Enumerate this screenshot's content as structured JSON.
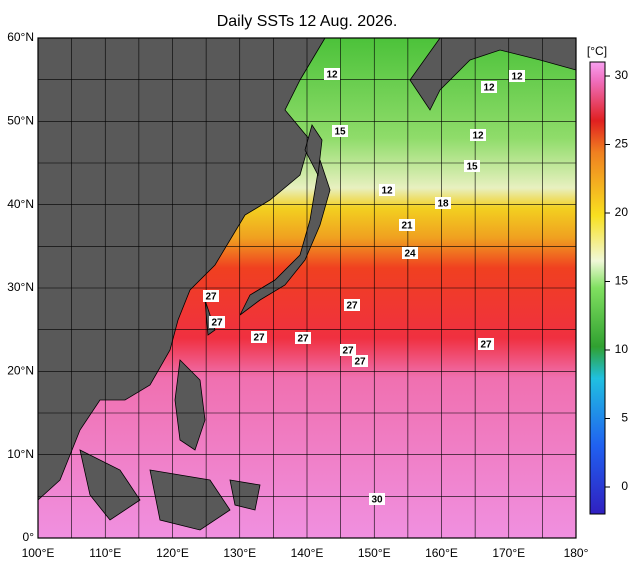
{
  "map": {
    "title": "Daily SSTs 12 Aug. 2026.",
    "lon_ticks": [
      {
        "value": 100,
        "label": "100°E"
      },
      {
        "value": 110,
        "label": "110°E"
      },
      {
        "value": 120,
        "label": "120°E"
      },
      {
        "value": 130,
        "label": "130°E"
      },
      {
        "value": 140,
        "label": "140°E"
      },
      {
        "value": 150,
        "label": "150°E"
      },
      {
        "value": 160,
        "label": "160°E"
      },
      {
        "value": 170,
        "label": "170°E"
      },
      {
        "value": 180,
        "label": "180°"
      }
    ],
    "lat_ticks": [
      {
        "value": 0,
        "label": "0°"
      },
      {
        "value": 10,
        "label": "10°N"
      },
      {
        "value": 20,
        "label": "20°N"
      },
      {
        "value": 30,
        "label": "30°N"
      },
      {
        "value": 40,
        "label": "40°N"
      },
      {
        "value": 50,
        "label": "50°N"
      },
      {
        "value": 60,
        "label": "60°N"
      }
    ],
    "colorbar": {
      "unit": "[°C]",
      "ticks": [
        0,
        5,
        10,
        15,
        20,
        25,
        30
      ]
    },
    "contour_labels": [
      "12",
      "12",
      "12",
      "15",
      "12",
      "15",
      "12",
      "18",
      "21",
      "24",
      "27",
      "27",
      "27",
      "27",
      "27",
      "27",
      "27",
      "27",
      "30"
    ]
  }
}
